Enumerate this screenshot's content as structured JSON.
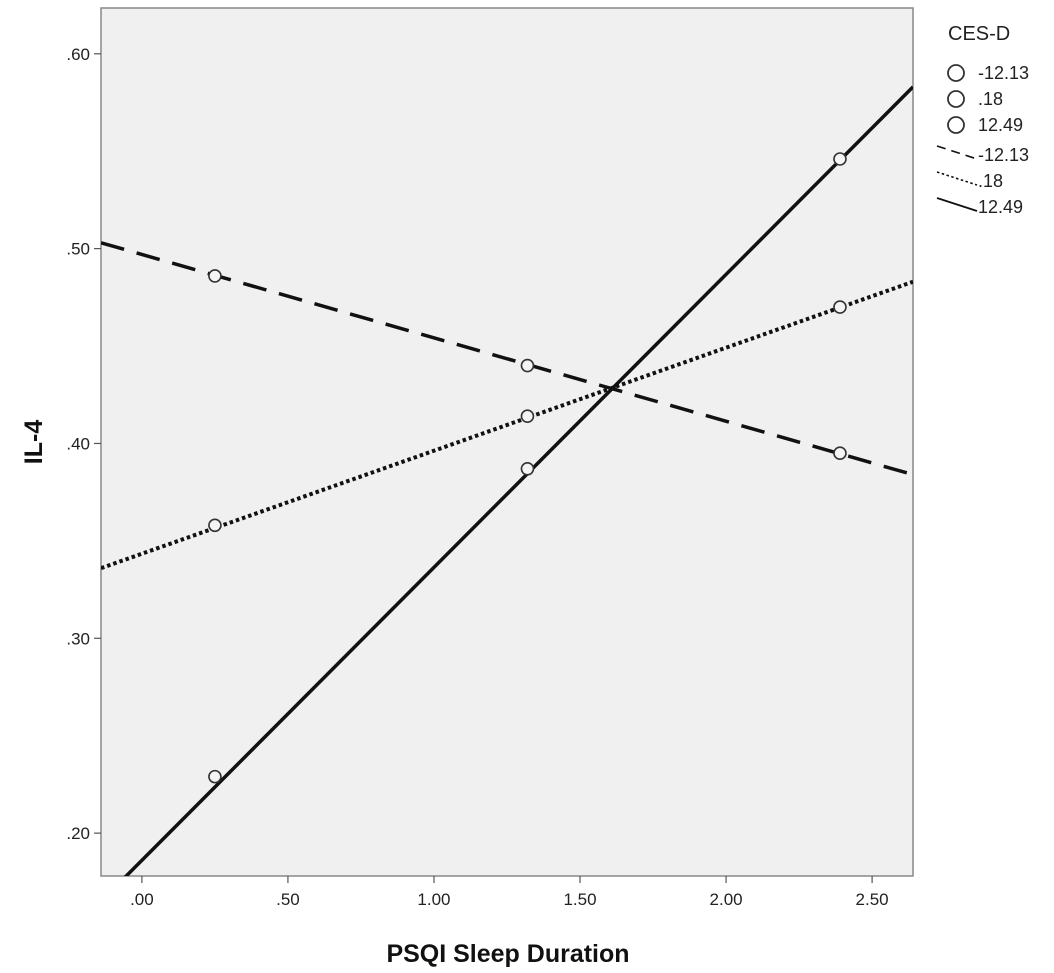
{
  "chart_data": {
    "type": "line",
    "title": "",
    "xlabel": "PSQI Sleep Duration",
    "ylabel": "IL-4",
    "xlim": [
      -0.14,
      2.64
    ],
    "ylim": [
      0.178,
      0.6235
    ],
    "x_ticks": [
      0,
      0.5,
      1.0,
      1.5,
      2.0,
      2.5
    ],
    "x_tick_labels": [
      ".00",
      ".50",
      "1.00",
      "1.50",
      "2.00",
      "2.50"
    ],
    "y_ticks": [
      0.2,
      0.3,
      0.4,
      0.5,
      0.6
    ],
    "y_tick_labels": [
      ".20",
      ".30",
      ".40",
      ".50",
      ".60"
    ],
    "grid": false,
    "legend_position": "right",
    "legend_title": "CES-D",
    "colors": {
      "line": "#111111",
      "plot_bg": "#f0f0f0",
      "frame": "#888888"
    },
    "series": [
      {
        "name": "-12.13",
        "style": "dashed",
        "line": {
          "x": [
            -0.14,
            2.64
          ],
          "y": [
            0.503,
            0.384
          ]
        },
        "points": {
          "x": [
            0.25,
            1.32,
            2.39
          ],
          "y": [
            0.486,
            0.44,
            0.395
          ]
        }
      },
      {
        "name": ".18",
        "style": "dotted",
        "line": {
          "x": [
            -0.14,
            2.64
          ],
          "y": [
            0.336,
            0.483
          ]
        },
        "points": {
          "x": [
            0.25,
            1.32,
            2.39
          ],
          "y": [
            0.358,
            0.414,
            0.47
          ]
        }
      },
      {
        "name": "12.49",
        "style": "solid",
        "line": {
          "x": [
            -0.14,
            2.64
          ],
          "y": [
            0.165,
            0.583
          ]
        },
        "points": {
          "x": [
            0.25,
            1.32,
            2.39
          ],
          "y": [
            0.229,
            0.387,
            0.546
          ]
        }
      }
    ]
  }
}
